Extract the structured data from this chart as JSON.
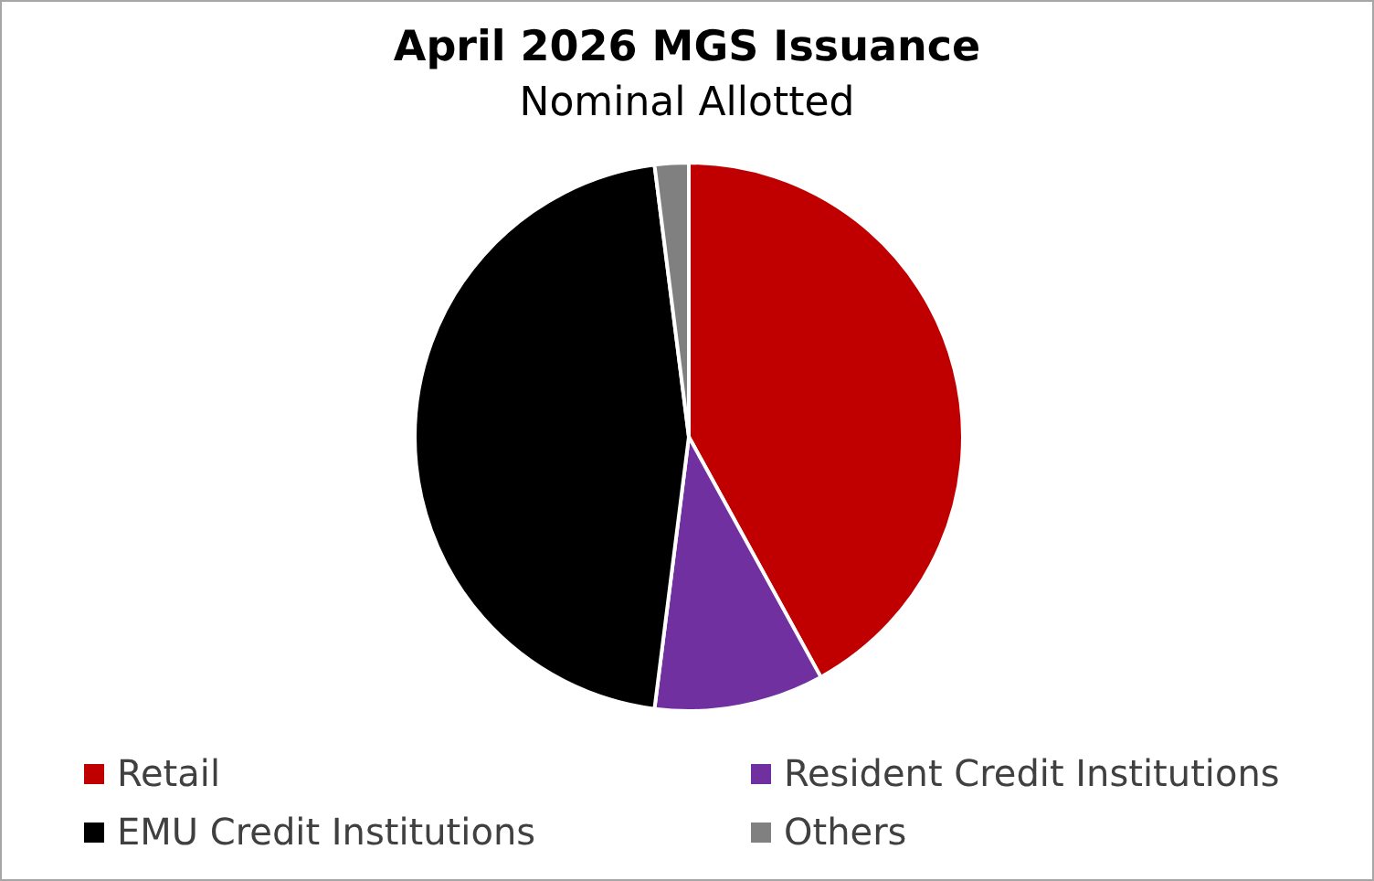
{
  "chart_data": {
    "type": "pie",
    "title": "April 2026 MGS Issuance",
    "subtitle": "Nominal Allotted",
    "categories": [
      "Retail",
      "Resident Credit Institutions",
      "EMU Credit Institutions",
      "Others"
    ],
    "values": [
      42,
      10,
      46,
      2
    ],
    "colors": [
      "#c00000",
      "#7030a0",
      "#000000",
      "#808080"
    ],
    "legend": "bottom"
  }
}
